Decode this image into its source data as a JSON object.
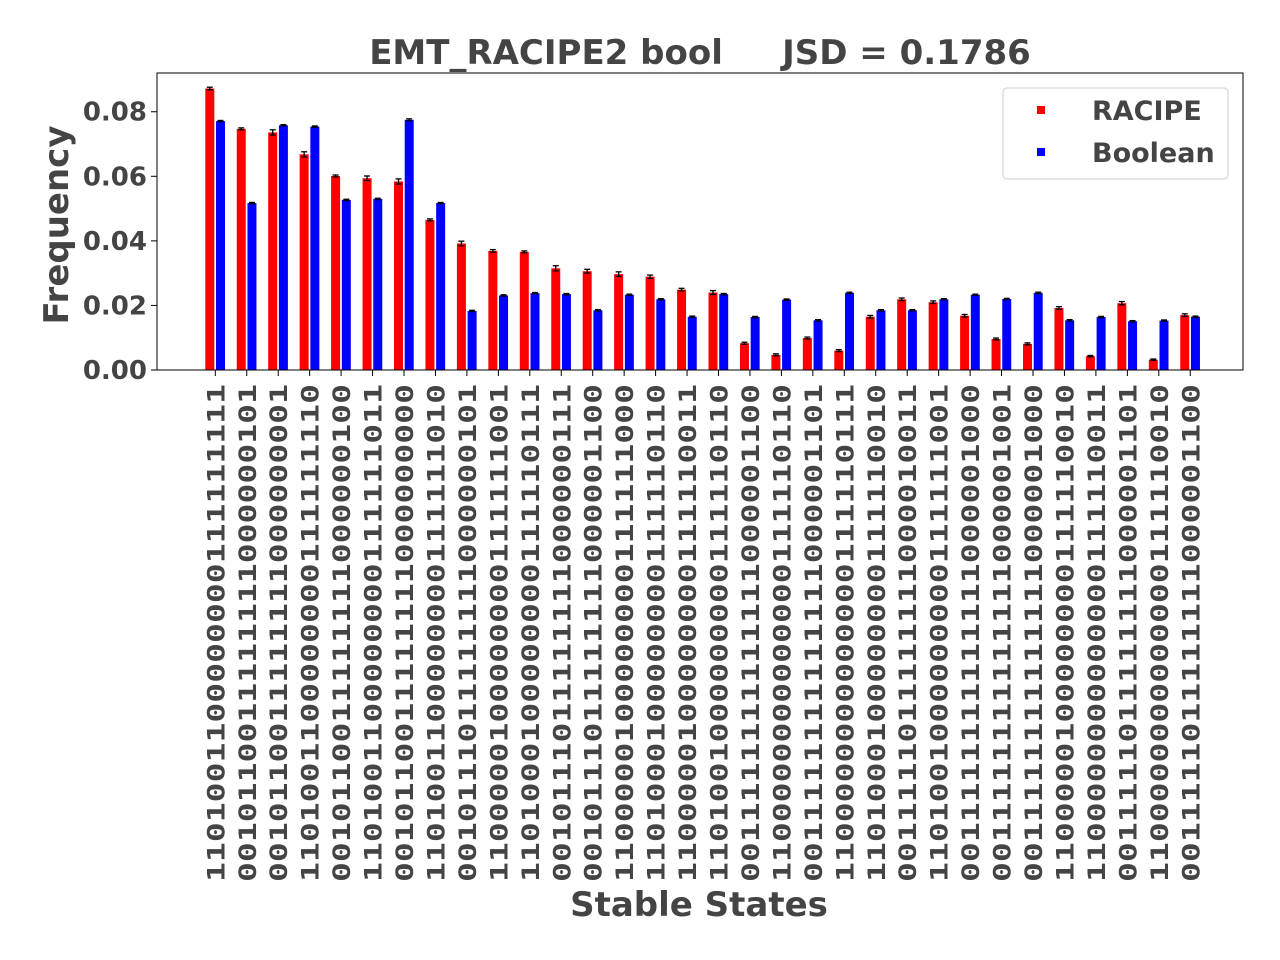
{
  "chart_data": {
    "type": "bar",
    "title": "EMT_RACIPE2 bool     JSD = 0.1786",
    "xlabel": "Stable States",
    "ylabel": "Frequency",
    "ylim": [
      0,
      0.092
    ],
    "yticks": [
      "0.00",
      "0.02",
      "0.04",
      "0.06",
      "0.08"
    ],
    "ytick_values": [
      0,
      0.02,
      0.04,
      0.06,
      0.08
    ],
    "grid": false,
    "legend_position": "top-right",
    "categories": [
      "1101001100000000111111111",
      "0010110011111111000000101",
      "0010110011111111000000001",
      "1101001100000000111111110",
      "0010110011111111000000100",
      "1101001100000000111111011",
      "0010110011111111000000000",
      "1101001100000000111111010",
      "0010111011111111000000101",
      "1100000100000000111111001",
      "1101000100000000111110111",
      "0010111011111111000000111",
      "0010111011111111000001100",
      "1100000100000000111111000",
      "1101000100000000111110110",
      "1100000100000000111110011",
      "1101001000000000111110110",
      "0011111111111111000001100",
      "1100000000000000111110110",
      "0011111111111111000001101",
      "1100000000000000111110111",
      "1101000100000000111110010",
      "0011111011111111000010011",
      "1101001000000000111111001",
      "0011111111111111000001000",
      "0011111111111111000001001",
      "0011111111111111000001000",
      "1100000100000000111110010",
      "1100000000000000111110011",
      "0011111011111111000001101",
      "1100000000000000111110010",
      "0011111011111111000001100"
    ],
    "series": [
      {
        "name": "RACIPE",
        "color": "#ff0000",
        "values": [
          0.0872,
          0.0747,
          0.0736,
          0.0668,
          0.0601,
          0.0594,
          0.0584,
          0.0465,
          0.0392,
          0.0369,
          0.0366,
          0.0315,
          0.0306,
          0.0297,
          0.0289,
          0.0249,
          0.024,
          0.0083,
          0.0047,
          0.0099,
          0.006,
          0.0165,
          0.0219,
          0.021,
          0.0168,
          0.0096,
          0.0081,
          0.0192,
          0.0043,
          0.0207,
          0.0032,
          0.017
        ],
        "errors": [
          0.0004,
          0.0003,
          0.0008,
          0.0008,
          0.0003,
          0.0007,
          0.0008,
          0.0003,
          0.0007,
          0.0004,
          0.0003,
          0.0008,
          0.0006,
          0.0007,
          0.0005,
          0.0004,
          0.0006,
          0.0003,
          0.0003,
          0.0003,
          0.0003,
          0.0004,
          0.0004,
          0.0004,
          0.0004,
          0.0003,
          0.0003,
          0.0004,
          0.0002,
          0.0005,
          0.0002,
          0.0004
        ]
      },
      {
        "name": "Boolean",
        "color": "#0000ff",
        "values": [
          0.0771,
          0.0517,
          0.0758,
          0.0754,
          0.0527,
          0.053,
          0.0775,
          0.0517,
          0.0183,
          0.0231,
          0.0238,
          0.0235,
          0.0185,
          0.0233,
          0.0219,
          0.0165,
          0.0235,
          0.0164,
          0.0218,
          0.0154,
          0.0239,
          0.0185,
          0.0185,
          0.0219,
          0.0233,
          0.022,
          0.0239,
          0.0154,
          0.0164,
          0.0151,
          0.0153,
          0.0165
        ],
        "errors": [
          0.0002,
          0.0002,
          0.0002,
          0.0002,
          0.0002,
          0.0002,
          0.0003,
          0.0002,
          0.0002,
          0.0002,
          0.0002,
          0.0002,
          0.0002,
          0.0002,
          0.0002,
          0.0002,
          0.0002,
          0.0002,
          0.0002,
          0.0002,
          0.0002,
          0.0002,
          0.0002,
          0.0002,
          0.0002,
          0.0002,
          0.0002,
          0.0002,
          0.0002,
          0.0002,
          0.0002,
          0.0002
        ]
      }
    ]
  }
}
